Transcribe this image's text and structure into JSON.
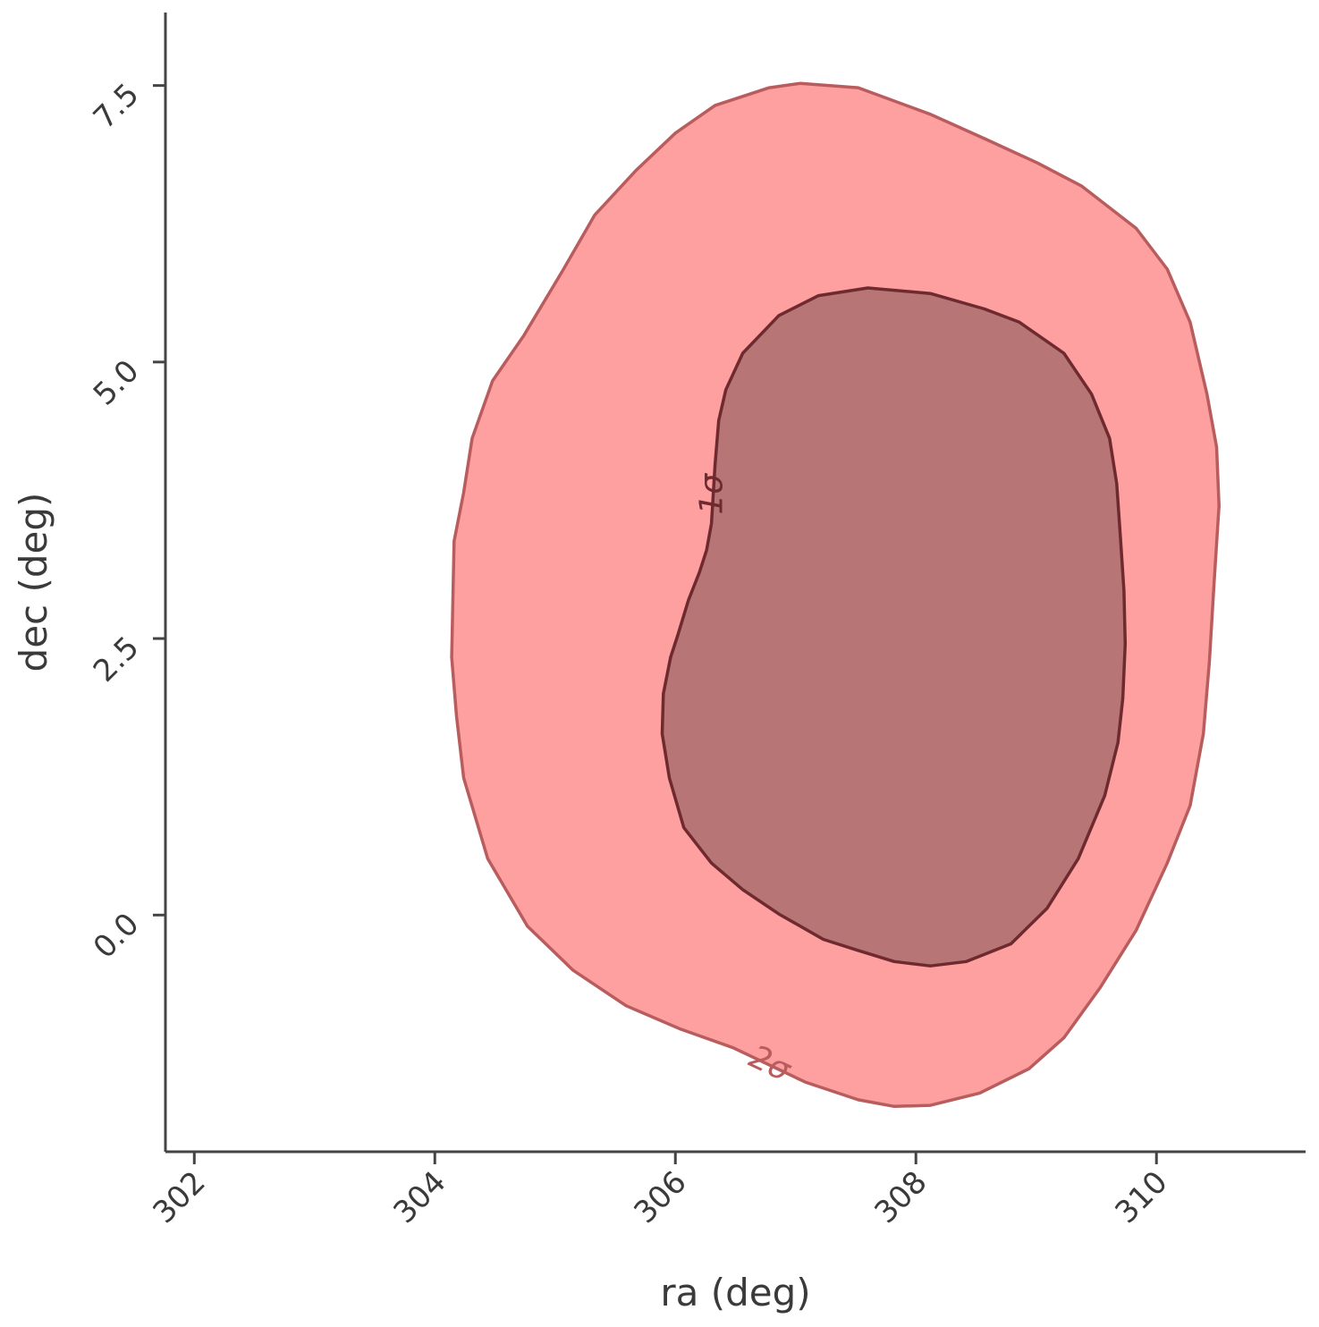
{
  "chart_data": {
    "type": "contour",
    "xlabel": "ra (deg)",
    "ylabel": "dec (deg)",
    "xlim": [
      301.76,
      311.24
    ],
    "ylim": [
      -2.14,
      8.16
    ],
    "xticks": [
      302,
      304,
      306,
      308,
      310
    ],
    "yticks": [
      {
        "value": 0,
        "label": "0.0"
      },
      2.5,
      {
        "value": 5,
        "label": "5.0"
      },
      7.5
    ],
    "levels": [
      {
        "label": "2σ",
        "fill": "#fea0a0",
        "edge": "#b85c5e",
        "x": [
          307.04,
          307.52,
          308.12,
          308.57,
          309.01,
          309.38,
          309.83,
          310.09,
          310.28,
          310.42,
          310.5,
          310.52,
          310.48,
          310.44,
          310.39,
          310.28,
          310.09,
          309.83,
          309.53,
          309.23,
          308.94,
          308.53,
          308.12,
          307.82,
          307.52,
          307.08,
          306.48,
          306.04,
          305.59,
          305.15,
          304.77,
          304.44,
          304.24,
          304.18,
          304.14,
          304.16,
          304.24,
          304.31,
          304.48,
          304.74,
          305.07,
          305.33,
          305.67,
          306.0,
          306.33,
          306.78
        ],
        "y": [
          7.52,
          7.48,
          7.24,
          7.02,
          6.8,
          6.59,
          6.21,
          5.84,
          5.36,
          4.71,
          4.23,
          3.7,
          3.02,
          2.29,
          1.64,
          0.99,
          0.47,
          -0.14,
          -0.66,
          -1.11,
          -1.39,
          -1.61,
          -1.72,
          -1.73,
          -1.67,
          -1.51,
          -1.2,
          -1.03,
          -0.82,
          -0.5,
          -0.1,
          0.51,
          1.24,
          1.8,
          2.33,
          3.38,
          3.82,
          4.31,
          4.83,
          5.24,
          5.84,
          6.33,
          6.73,
          7.07,
          7.32,
          7.48
        ]
      },
      {
        "label": "1σ",
        "fill": "#b77575",
        "edge": "#6e2a2e",
        "x": [
          307.6,
          308.12,
          308.57,
          308.86,
          309.23,
          309.46,
          309.61,
          309.67,
          309.7,
          309.73,
          309.74,
          309.72,
          309.68,
          309.57,
          309.35,
          309.09,
          308.79,
          308.42,
          308.12,
          307.82,
          307.52,
          307.23,
          306.86,
          306.56,
          306.3,
          306.07,
          305.95,
          305.89,
          305.9,
          305.96,
          306.02,
          306.11,
          306.2,
          306.26,
          306.3,
          306.33,
          306.36,
          306.42,
          306.56,
          306.86,
          307.19
        ],
        "y": [
          5.67,
          5.62,
          5.48,
          5.36,
          5.08,
          4.71,
          4.31,
          3.9,
          3.42,
          2.93,
          2.45,
          1.96,
          1.56,
          1.08,
          0.51,
          0.06,
          -0.26,
          -0.42,
          -0.46,
          -0.42,
          -0.32,
          -0.22,
          0.01,
          0.23,
          0.47,
          0.79,
          1.24,
          1.64,
          2.0,
          2.33,
          2.53,
          2.85,
          3.1,
          3.3,
          3.54,
          4.07,
          4.47,
          4.75,
          5.08,
          5.42,
          5.6
        ]
      }
    ]
  }
}
